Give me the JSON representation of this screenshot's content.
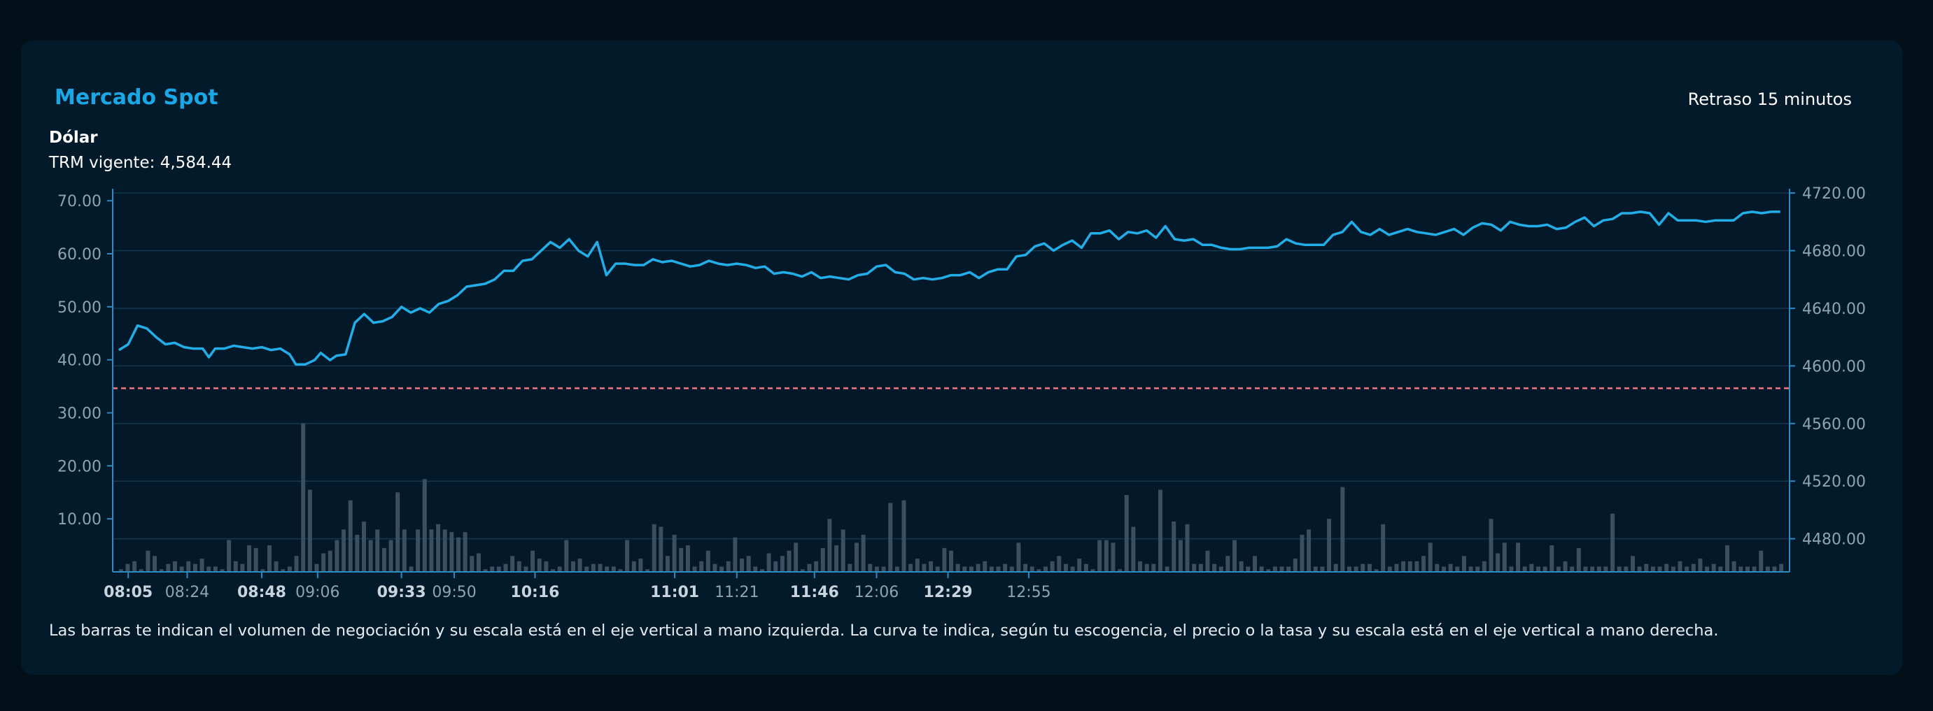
{
  "header": {
    "title": "Mercado Spot",
    "delay_text": "Retraso 15 minutos",
    "asset": "Dólar",
    "trm_label": "TRM vigente: 4,584.44"
  },
  "footnote": "Las barras te indican el volumen de negociación y su escala está en el eje vertical a mano izquierda. La curva te indica, según tu escogencia, el precio o la tasa y su escala está en el eje vertical a mano derecha.",
  "colors": {
    "line": "#22aee8",
    "bars": "#3a4f60",
    "reference_line": "#f07a84",
    "axis": "#2b8bc4",
    "grid": "#15364c",
    "tick_text": "#8fa4b3",
    "tick_text_bold": "#c8d4de"
  },
  "chart_data": {
    "type": "line",
    "description_series": [
      "volume bars (left axis)",
      "price line (right axis)"
    ],
    "left_axis": {
      "ylim": [
        0,
        72
      ],
      "ticks": [
        "10.00",
        "20.00",
        "30.00",
        "40.00",
        "50.00",
        "60.00",
        "70.00"
      ],
      "tick_values": [
        10,
        20,
        30,
        40,
        50,
        60,
        70
      ]
    },
    "right_axis": {
      "ylim": [
        4457,
        4722
      ],
      "ticks": [
        "4480.00",
        "4520.00",
        "4560.00",
        "4600.00",
        "4640.00",
        "4680.00",
        "4720.00"
      ],
      "tick_values": [
        4480,
        4520,
        4560,
        4600,
        4640,
        4680,
        4720
      ]
    },
    "x_axis": {
      "xlim": [
        480,
        1020
      ],
      "ticks": [
        {
          "label": "08:05",
          "t": 485,
          "bold": true
        },
        {
          "label": "08:24",
          "t": 504,
          "bold": false
        },
        {
          "label": "08:48",
          "t": 528,
          "bold": true
        },
        {
          "label": "09:06",
          "t": 546,
          "bold": false
        },
        {
          "label": "09:33",
          "t": 573,
          "bold": true
        },
        {
          "label": "09:50",
          "t": 590,
          "bold": false
        },
        {
          "label": "10:16",
          "t": 616,
          "bold": true
        },
        {
          "label": "11:01",
          "t": 661,
          "bold": true
        },
        {
          "label": "11:21",
          "t": 681,
          "bold": false
        },
        {
          "label": "11:46",
          "t": 706,
          "bold": true
        },
        {
          "label": "12:06",
          "t": 726,
          "bold": false
        },
        {
          "label": "12:29",
          "t": 749,
          "bold": true
        },
        {
          "label": "12:55",
          "t": 775,
          "bold": false
        }
      ]
    },
    "reference_line": {
      "value": 4584.44,
      "style": "dashed"
    },
    "grid": true,
    "price_points": [
      [
        482,
        4611
      ],
      [
        485,
        4615
      ],
      [
        488,
        4628
      ],
      [
        491,
        4626
      ],
      [
        494,
        4620
      ],
      [
        497,
        4615
      ],
      [
        500,
        4616
      ],
      [
        503,
        4613
      ],
      [
        506,
        4612
      ],
      [
        509,
        4612
      ],
      [
        511,
        4606
      ],
      [
        513,
        4612
      ],
      [
        516,
        4612
      ],
      [
        519,
        4614
      ],
      [
        522,
        4613
      ],
      [
        525,
        4612
      ],
      [
        528,
        4613
      ],
      [
        531,
        4611
      ],
      [
        534,
        4612
      ],
      [
        537,
        4608
      ],
      [
        539,
        4601
      ],
      [
        542,
        4601
      ],
      [
        545,
        4604
      ],
      [
        547,
        4609
      ],
      [
        550,
        4604
      ],
      [
        552,
        4607
      ],
      [
        555,
        4608
      ],
      [
        558,
        4630
      ],
      [
        561,
        4636
      ],
      [
        564,
        4630
      ],
      [
        567,
        4631
      ],
      [
        570,
        4634
      ],
      [
        573,
        4641
      ],
      [
        576,
        4637
      ],
      [
        579,
        4640
      ],
      [
        582,
        4637
      ],
      [
        585,
        4643
      ],
      [
        588,
        4645
      ],
      [
        591,
        4649
      ],
      [
        594,
        4655
      ],
      [
        597,
        4656
      ],
      [
        600,
        4657
      ],
      [
        603,
        4660
      ],
      [
        606,
        4666
      ],
      [
        609,
        4666
      ],
      [
        612,
        4673
      ],
      [
        615,
        4674
      ],
      [
        618,
        4680
      ],
      [
        621,
        4686
      ],
      [
        624,
        4682
      ],
      [
        627,
        4688
      ],
      [
        630,
        4680
      ],
      [
        633,
        4676
      ],
      [
        636,
        4686
      ],
      [
        639,
        4663
      ],
      [
        642,
        4671
      ],
      [
        645,
        4671
      ],
      [
        648,
        4670
      ],
      [
        651,
        4670
      ],
      [
        654,
        4674
      ],
      [
        657,
        4672
      ],
      [
        660,
        4673
      ],
      [
        663,
        4671
      ],
      [
        666,
        4669
      ],
      [
        669,
        4670
      ],
      [
        672,
        4673
      ],
      [
        675,
        4671
      ],
      [
        678,
        4670
      ],
      [
        681,
        4671
      ],
      [
        684,
        4670
      ],
      [
        687,
        4668
      ],
      [
        690,
        4669
      ],
      [
        693,
        4664
      ],
      [
        696,
        4665
      ],
      [
        699,
        4664
      ],
      [
        702,
        4662
      ],
      [
        705,
        4665
      ],
      [
        708,
        4661
      ],
      [
        711,
        4662
      ],
      [
        714,
        4661
      ],
      [
        717,
        4660
      ],
      [
        720,
        4663
      ],
      [
        723,
        4664
      ],
      [
        726,
        4669
      ],
      [
        729,
        4670
      ],
      [
        732,
        4665
      ],
      [
        735,
        4664
      ],
      [
        738,
        4660
      ],
      [
        741,
        4661
      ],
      [
        744,
        4660
      ],
      [
        747,
        4661
      ],
      [
        750,
        4663
      ],
      [
        753,
        4663
      ],
      [
        756,
        4665
      ],
      [
        759,
        4661
      ],
      [
        762,
        4665
      ],
      [
        765,
        4667
      ],
      [
        768,
        4667
      ],
      [
        771,
        4676
      ],
      [
        774,
        4677
      ],
      [
        777,
        4683
      ],
      [
        780,
        4685
      ],
      [
        783,
        4680
      ],
      [
        786,
        4684
      ],
      [
        789,
        4687
      ],
      [
        792,
        4682
      ],
      [
        795,
        4692
      ],
      [
        798,
        4692
      ],
      [
        801,
        4694
      ],
      [
        804,
        4688
      ],
      [
        807,
        4693
      ],
      [
        810,
        4692
      ],
      [
        813,
        4694
      ],
      [
        816,
        4689
      ],
      [
        819,
        4697
      ],
      [
        822,
        4688
      ],
      [
        825,
        4687
      ],
      [
        828,
        4688
      ],
      [
        831,
        4684
      ],
      [
        834,
        4684
      ],
      [
        837,
        4682
      ],
      [
        840,
        4681
      ],
      [
        843,
        4681
      ],
      [
        846,
        4682
      ],
      [
        849,
        4682
      ],
      [
        852,
        4682
      ],
      [
        855,
        4683
      ],
      [
        858,
        4688
      ],
      [
        861,
        4685
      ],
      [
        864,
        4684
      ],
      [
        867,
        4684
      ],
      [
        870,
        4684
      ],
      [
        873,
        4691
      ],
      [
        876,
        4693
      ],
      [
        879,
        4700
      ],
      [
        882,
        4693
      ],
      [
        885,
        4691
      ],
      [
        888,
        4695
      ],
      [
        891,
        4691
      ],
      [
        894,
        4693
      ],
      [
        897,
        4695
      ],
      [
        900,
        4693
      ],
      [
        903,
        4692
      ],
      [
        906,
        4691
      ],
      [
        909,
        4693
      ],
      [
        912,
        4695
      ],
      [
        915,
        4691
      ],
      [
        918,
        4696
      ],
      [
        921,
        4699
      ],
      [
        924,
        4698
      ],
      [
        927,
        4694
      ],
      [
        930,
        4700
      ],
      [
        933,
        4698
      ],
      [
        936,
        4697
      ],
      [
        939,
        4697
      ],
      [
        942,
        4698
      ],
      [
        945,
        4695
      ],
      [
        948,
        4696
      ],
      [
        951,
        4700
      ],
      [
        954,
        4703
      ],
      [
        957,
        4697
      ],
      [
        960,
        4701
      ],
      [
        963,
        4702
      ],
      [
        966,
        4706
      ],
      [
        969,
        4706
      ],
      [
        972,
        4707
      ],
      [
        975,
        4706
      ],
      [
        978,
        4698
      ],
      [
        981,
        4706
      ],
      [
        984,
        4701
      ],
      [
        987,
        4701
      ],
      [
        990,
        4701
      ],
      [
        993,
        4700
      ],
      [
        996,
        4701
      ],
      [
        999,
        4701
      ],
      [
        1002,
        4701
      ],
      [
        1005,
        4706
      ],
      [
        1008,
        4707
      ],
      [
        1011,
        4706
      ],
      [
        1014,
        4707
      ],
      [
        1017,
        4707
      ]
    ],
    "volume_values": [
      0.5,
      1.5,
      2,
      0.5,
      4,
      3,
      0.5,
      1.5,
      2,
      1,
      2,
      1.5,
      2.5,
      1,
      1,
      0.5,
      6,
      2,
      1.5,
      5,
      4.5,
      0.5,
      5,
      2,
      0.5,
      1,
      3,
      28,
      15.5,
      1.5,
      3.5,
      4,
      6,
      8,
      13.5,
      7,
      9.5,
      6,
      8,
      4.5,
      6,
      15,
      8,
      1,
      8,
      17.5,
      8,
      9,
      8,
      7.5,
      6.5,
      7.5,
      3,
      3.5,
      0.5,
      1,
      1,
      1.5,
      3,
      2,
      1,
      4,
      2.5,
      2,
      0.5,
      1,
      6,
      2,
      2.5,
      1,
      1.5,
      1.5,
      1,
      1,
      0.5,
      6,
      2,
      2.5,
      0.5,
      9,
      8.5,
      3,
      7,
      4.5,
      5,
      1,
      2,
      4,
      1.5,
      1,
      2,
      6.5,
      2.5,
      3,
      1,
      0.5,
      3.5,
      2,
      3,
      4,
      5.5,
      0.5,
      1.5,
      2,
      4.5,
      10,
      5,
      8,
      1.5,
      5.5,
      7,
      1.5,
      1,
      1,
      13,
      1,
      13.5,
      1.5,
      2.5,
      1.5,
      2,
      1,
      4.5,
      4,
      1.5,
      1,
      1,
      1.5,
      2,
      1,
      1,
      1.5,
      1,
      5.5,
      1.5,
      1,
      0.5,
      1,
      2,
      3,
      1.5,
      1,
      2.5,
      1.5,
      0.5,
      6,
      6,
      5.5,
      0.5,
      14.5,
      8.5,
      2,
      1.5,
      1.5,
      15.5,
      1,
      9.5,
      6,
      9,
      1.5,
      1.5,
      4,
      1.5,
      1,
      3,
      6,
      2,
      1,
      3,
      1,
      0.5,
      1,
      1,
      1,
      2.5,
      7,
      8,
      1,
      1,
      10,
      1.5,
      16,
      1,
      1,
      1.5,
      1.5,
      0.5,
      9,
      1,
      1.5,
      2,
      2,
      2,
      3,
      5.5,
      1.5,
      1,
      1.5,
      1,
      3,
      1,
      1,
      2,
      10,
      3.5,
      5.5,
      1,
      5.5,
      1,
      1.5,
      1,
      1,
      5,
      1,
      2,
      1,
      4.5,
      1,
      1,
      1,
      1,
      11,
      1,
      1,
      3,
      1,
      1.5,
      1,
      1,
      1.5,
      1,
      2,
      1,
      1.5,
      2.5,
      1,
      1.5,
      1,
      5,
      2,
      1,
      1,
      1,
      4,
      1,
      1,
      1.5
    ]
  }
}
